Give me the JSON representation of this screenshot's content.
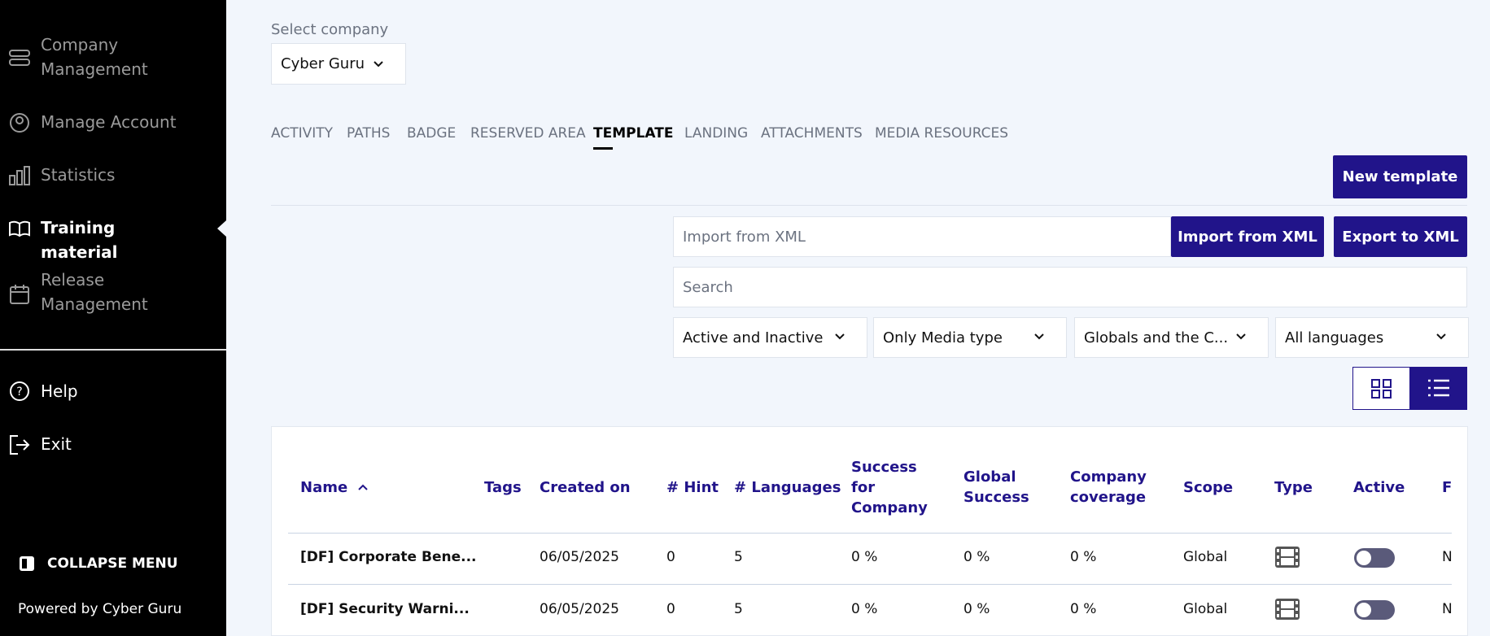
{
  "sidebar": {
    "items": [
      "Company Management",
      "Manage Account",
      "Statistics",
      "Training material",
      "Release Management"
    ],
    "help": "Help",
    "exit": "Exit",
    "collapse": "COLLAPSE MENU",
    "powered_by": "Powered by",
    "brand": "Cyber Guru"
  },
  "company_select": {
    "label": "Select company",
    "value": "Cyber Guru"
  },
  "tabs": [
    "ACTIVITY",
    "PATHS",
    "BADGE",
    "RESERVED AREA",
    "TEMPLATE",
    "LANDING",
    "ATTACHMENTS",
    "MEDIA RESOURCES"
  ],
  "buttons": {
    "new_template": "New template",
    "import": "Import from XML",
    "export": "Export to XML"
  },
  "inputs": {
    "import_placeholder": "Import from XML",
    "search_placeholder": "Search"
  },
  "filters": [
    "Active and Inactive",
    "Only Media type",
    "Globals and the C...",
    "All languages"
  ],
  "table": {
    "columns": [
      "Name",
      "Tags",
      "Created on",
      "# Hint",
      "# Languages",
      "Success for Company",
      "Global Success",
      "Company coverage",
      "Scope",
      "Type",
      "Active",
      "F"
    ],
    "rows": [
      {
        "name": "[DF] Corporate Bene...",
        "created_on": "06/05/2025",
        "hints": 0,
        "languages": 5,
        "success_company": "0 %",
        "global_success": "0 %",
        "coverage": "0 %",
        "scope": "Global",
        "f": "N"
      },
      {
        "name": "[DF] Security Warni...",
        "created_on": "06/05/2025",
        "hints": 0,
        "languages": 5,
        "success_company": "0 %",
        "global_success": "0 %",
        "coverage": "0 %",
        "scope": "Global",
        "f": "N"
      }
    ]
  }
}
